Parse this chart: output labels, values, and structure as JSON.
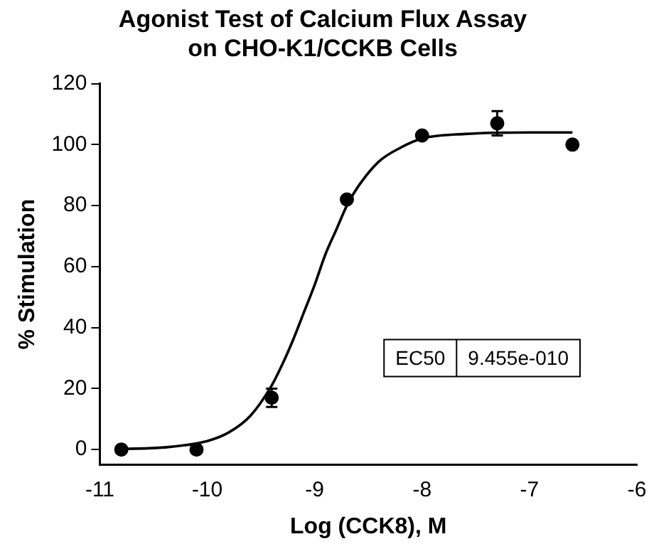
{
  "chart_data": {
    "type": "scatter",
    "title": "Agonist Test of Calcium Flux Assay on CHO-K1/CCKB Cells",
    "xlabel": "Log (CCK8), M",
    "ylabel": "% Stimulation",
    "xlim": [
      -11,
      -6
    ],
    "xticks": [
      -11,
      -10,
      -9,
      -8,
      -7,
      -6
    ],
    "ylim": [
      -5,
      120
    ],
    "yticks": [
      0,
      20,
      40,
      60,
      80,
      100,
      120
    ],
    "grid": false,
    "legend": false,
    "marker": "circle",
    "annotations": [
      "EC50",
      "9.455e-010"
    ],
    "series": [
      {
        "type": "scatter",
        "color": "#000000",
        "x": [
          -10.8,
          -10.1,
          -9.4,
          -8.7,
          -8.0,
          -7.3,
          -6.6
        ],
        "values": [
          0,
          0,
          17,
          82,
          103,
          107,
          100
        ],
        "errors": [
          null,
          null,
          3,
          null,
          null,
          4,
          null
        ]
      },
      {
        "type": "line",
        "color": "#000000",
        "marker": "none",
        "line_style": "solid",
        "x": [
          -10.8,
          -10.4,
          -10.0,
          -9.8,
          -9.6,
          -9.4,
          -9.3,
          -9.2,
          -9.1,
          -9.0,
          -8.9,
          -8.8,
          -8.7,
          -8.6,
          -8.4,
          -8.2,
          -8.0,
          -7.6,
          -7.0,
          -6.6
        ],
        "values": [
          0.2,
          0.7,
          2.8,
          5.6,
          11,
          21,
          28,
          36,
          45,
          54,
          64,
          72,
          80,
          86,
          94.5,
          99,
          102,
          103.5,
          104,
          104
        ]
      }
    ]
  }
}
